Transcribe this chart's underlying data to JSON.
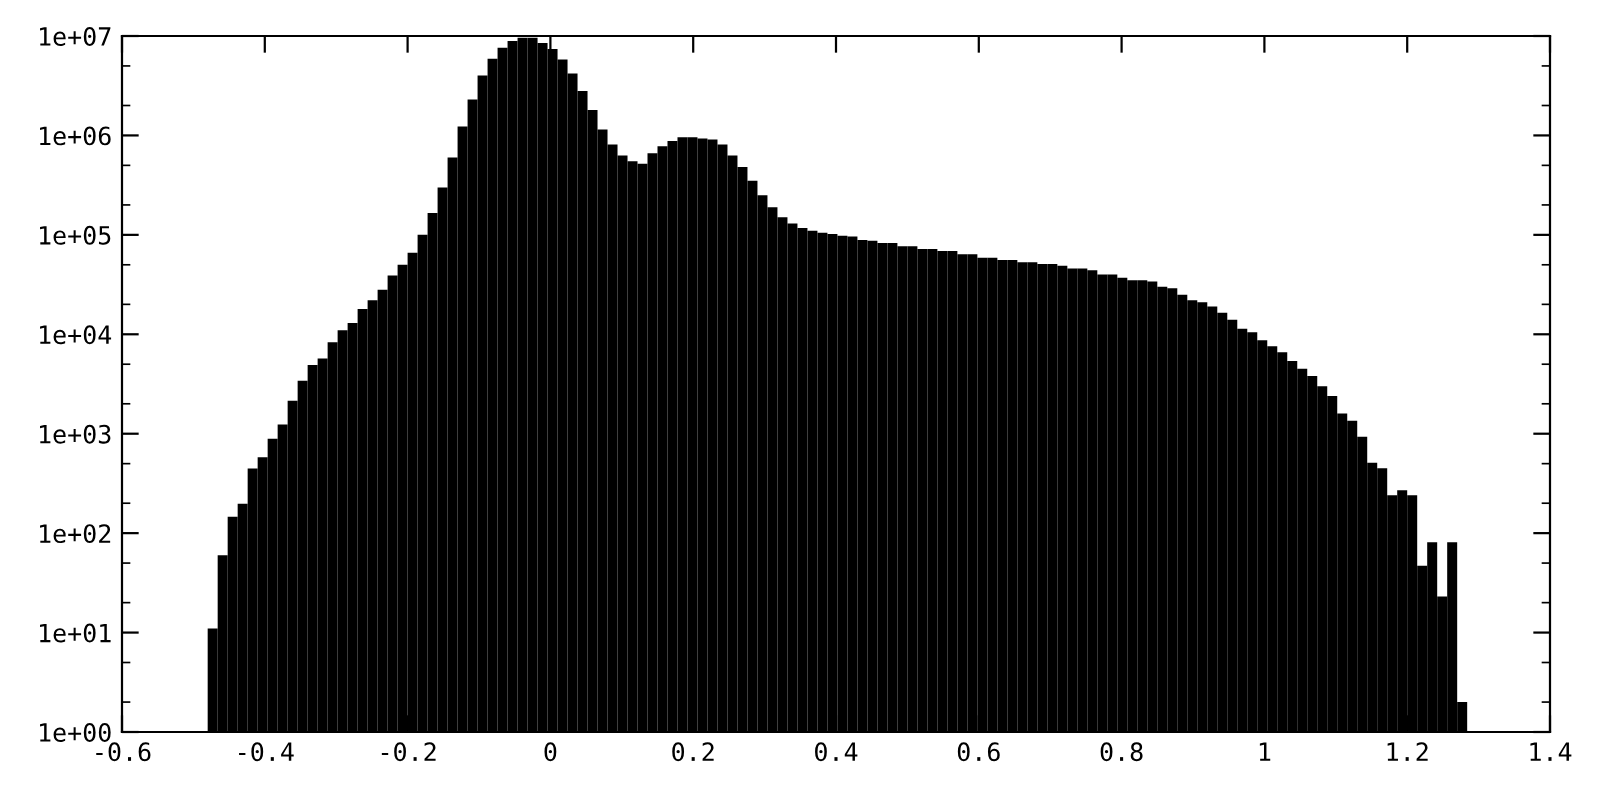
{
  "chart_data": {
    "type": "histogram",
    "color": "#000000",
    "log": "y",
    "grid": false,
    "legend": false,
    "bins": [
      -0.48,
      -0.466,
      -0.452,
      -0.438,
      -0.424,
      -0.41,
      -0.396,
      -0.382,
      -0.368,
      -0.354,
      -0.34,
      -0.326,
      -0.312,
      -0.298,
      -0.284,
      -0.27,
      -0.256,
      -0.242,
      -0.228,
      -0.214,
      -0.2,
      -0.186,
      -0.172,
      -0.158,
      -0.144,
      -0.13,
      -0.116,
      -0.102,
      -0.088,
      -0.074,
      -0.06,
      -0.046,
      -0.032,
      -0.018,
      -0.004,
      0.01,
      0.024,
      0.038,
      0.052,
      0.066,
      0.08,
      0.094,
      0.108,
      0.122,
      0.136,
      0.15,
      0.164,
      0.178,
      0.192,
      0.206,
      0.22,
      0.234,
      0.248,
      0.262,
      0.276,
      0.29,
      0.304,
      0.318,
      0.332,
      0.346,
      0.36,
      0.374,
      0.388,
      0.402,
      0.416,
      0.43,
      0.444,
      0.458,
      0.472,
      0.486,
      0.5,
      0.514,
      0.528,
      0.542,
      0.556,
      0.57,
      0.584,
      0.598,
      0.612,
      0.626,
      0.64,
      0.654,
      0.668,
      0.682,
      0.696,
      0.71,
      0.724,
      0.738,
      0.752,
      0.766,
      0.78,
      0.794,
      0.808,
      0.822,
      0.836,
      0.85,
      0.864,
      0.878,
      0.892,
      0.906,
      0.92,
      0.934,
      0.948,
      0.962,
      0.976,
      0.99,
      1.004,
      1.018,
      1.032,
      1.046,
      1.06,
      1.074,
      1.088,
      1.102,
      1.116,
      1.13,
      1.144,
      1.158,
      1.172,
      1.186,
      1.2,
      1.214,
      1.228,
      1.242,
      1.256,
      1.27,
      1.284
    ],
    "values": [
      11,
      60,
      146,
      198,
      447,
      580,
      890,
      1240,
      2150,
      3400,
      4900,
      5700,
      8300,
      11000,
      13000,
      18000,
      22000,
      28000,
      39000,
      50000,
      66000,
      100000,
      166000,
      300000,
      600000,
      1230000,
      2300000,
      4000000,
      5900000,
      7600000,
      8900000,
      9600000,
      9600000,
      8500000,
      7400000,
      5800000,
      4200000,
      2800000,
      1800000,
      1150000,
      810000,
      630000,
      550000,
      520000,
      660000,
      780000,
      880000,
      960000,
      960000,
      930000,
      910000,
      810000,
      630000,
      480000,
      350000,
      250000,
      190000,
      150000,
      130000,
      117000,
      110000,
      105000,
      102000,
      98000,
      96000,
      89000,
      87000,
      83000,
      83000,
      77000,
      77000,
      72000,
      72000,
      69000,
      69000,
      64000,
      64000,
      59000,
      59000,
      56000,
      56000,
      53000,
      53000,
      51000,
      51000,
      49000,
      46000,
      46000,
      44000,
      40000,
      40000,
      37000,
      35000,
      35000,
      34000,
      30000,
      29000,
      25000,
      22000,
      21000,
      19000,
      16500,
      14000,
      11400,
      10500,
      8700,
      7600,
      6600,
      5400,
      4500,
      3800,
      3000,
      2400,
      1600,
      1350,
      930,
      510,
      450,
      240,
      270,
      240,
      47,
      81,
      23,
      81,
      2
    ],
    "xlim": [
      -0.6,
      1.4
    ],
    "xticks": [
      -0.6,
      -0.4,
      -0.2,
      0,
      0.2,
      0.4,
      0.6,
      0.8,
      1,
      1.2,
      1.4
    ],
    "ylim": [
      1,
      10000000
    ],
    "yticks": [
      {
        "value": 1,
        "label": "1e+00"
      },
      {
        "value": 10,
        "label": "1e+01"
      },
      {
        "value": 100,
        "label": "1e+02"
      },
      {
        "value": 1000,
        "label": "1e+03"
      },
      {
        "value": 10000,
        "label": "1e+04"
      },
      {
        "value": 100000,
        "label": "1e+05"
      },
      {
        "value": 1000000,
        "label": "1e+06"
      },
      {
        "value": 10000000,
        "label": "1e+07"
      }
    ]
  }
}
